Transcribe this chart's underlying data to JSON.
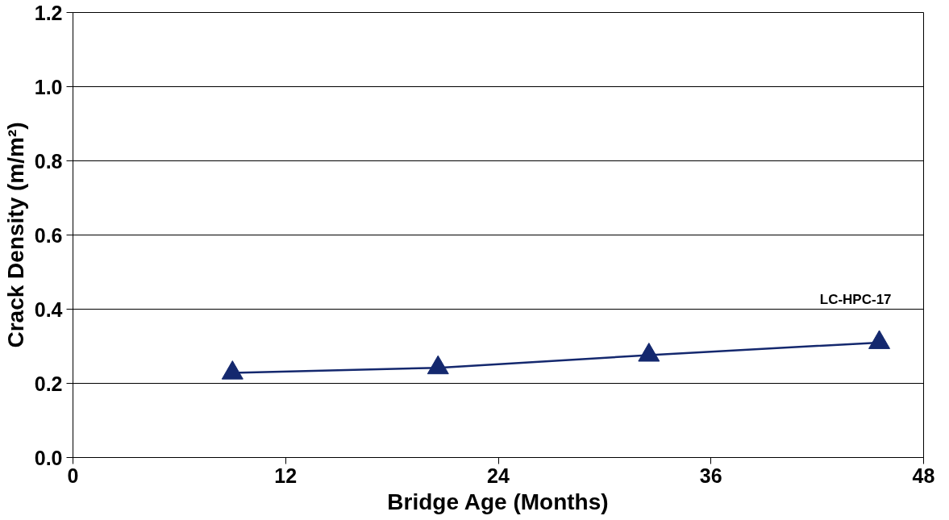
{
  "chart_data": {
    "type": "line",
    "xlabel": "Bridge Age (Months)",
    "ylabel": "Crack Density (m/m²)",
    "series": [
      {
        "name": "LC-HPC-17",
        "color": "#14286e",
        "x": [
          9.0,
          20.6,
          32.5,
          45.5
        ],
        "values": [
          0.228,
          0.242,
          0.276,
          0.31
        ]
      }
    ],
    "xlim": [
      0,
      48
    ],
    "xticks": [
      0,
      12,
      24,
      36,
      48
    ],
    "ylim": [
      0,
      1.2
    ],
    "yticks": [
      {
        "value": 0,
        "label": "0.0"
      },
      {
        "value": 0.2,
        "label": "0.2"
      },
      {
        "value": 0.4,
        "label": "0.4"
      },
      {
        "value": 0.6,
        "label": "0.6"
      },
      {
        "value": 0.8,
        "label": "0.8"
      },
      {
        "value": 1.0,
        "label": "1.0"
      },
      {
        "value": 1.2,
        "label": "1.2"
      }
    ],
    "grid": "y",
    "marker": "triangle",
    "line_style": "solid",
    "legend": false
  }
}
